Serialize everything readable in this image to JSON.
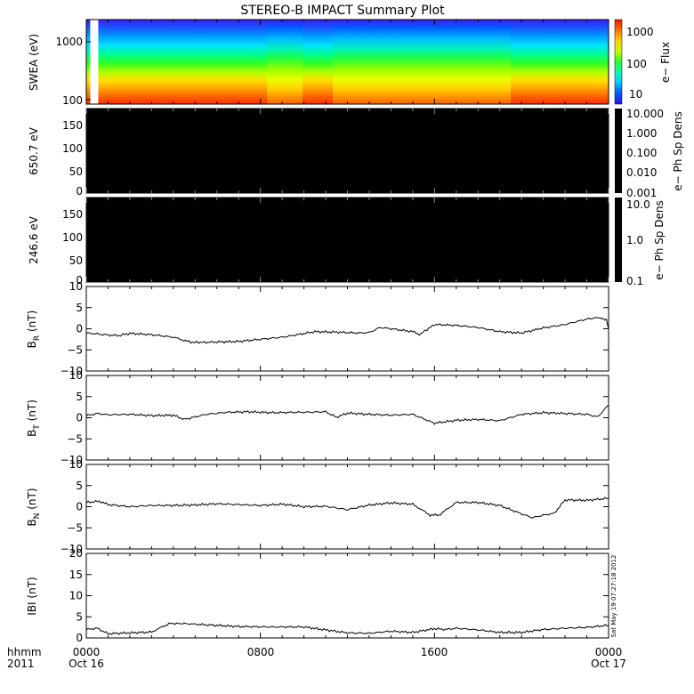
{
  "title": "STEREO-B IMPACT Summary Plot",
  "x_axis": {
    "corner_top": "hhmm",
    "corner_bottom": "2011",
    "tick_labels": [
      "0000",
      "0800",
      "1600",
      "0000"
    ],
    "date_labels": [
      "Oct 16",
      "",
      "",
      "Oct 17"
    ]
  },
  "timestamp": "Sat May 19 07:27:18 2012",
  "colors": {
    "trace": "#000000",
    "panel_fill_black": "#000000",
    "spectrogram_gap": "#ffffff"
  },
  "chart_data": [
    {
      "type": "heatmap",
      "panel": "swea",
      "ylabel": "SWEA (eV)",
      "yscale": "log",
      "ylim": [
        100,
        2000
      ],
      "y_ticks": [
        "1000",
        "100"
      ],
      "colorbar": {
        "label": "e− Flux",
        "scale": "log",
        "range": [
          5,
          3000
        ],
        "ticks": [
          "1000",
          "100",
          "10"
        ]
      },
      "data_gap_hours": [
        0.18,
        0.55
      ],
      "description_levels": "flux high (red/orange) near 100-250 eV, green/cyan near 500-800 eV, blue near 1500-2000 eV; dip near 0930-1000 and after 1200"
    },
    {
      "type": "heatmap",
      "panel": "pad650",
      "ylabel": "650.7  eV",
      "ylim": [
        0,
        180
      ],
      "y_ticks": [
        "150",
        "100",
        "50",
        "0"
      ],
      "colorbar": {
        "label": "e− Ph Sp Dens",
        "scale": "log",
        "range": [
          0.001,
          10
        ],
        "ticks": [
          "10.000",
          "1.000",
          "0.100",
          "0.010",
          "0.001"
        ]
      },
      "fill": "black"
    },
    {
      "type": "heatmap",
      "panel": "pad246",
      "ylabel": "246.6  eV",
      "ylim": [
        0,
        180
      ],
      "y_ticks": [
        "150",
        "100",
        "50",
        "0"
      ],
      "colorbar": {
        "label": "e− Ph Sp Dens",
        "scale": "log",
        "range": [
          0.1,
          10
        ],
        "ticks": [
          "10.0",
          "1.0",
          "0.1"
        ]
      },
      "fill": "black"
    },
    {
      "type": "line",
      "panel": "br",
      "ylabel_main": "B",
      "ylabel_sub": "R",
      "ylabel_unit": " (nT)",
      "ylim": [
        -10,
        10
      ],
      "y_ticks": [
        "10",
        "5",
        "0",
        "−5",
        "−10"
      ],
      "x_hours": [
        0.0,
        0.5,
        1.0,
        1.5,
        2.0,
        3.0,
        4.0,
        4.8,
        5.5,
        7.0,
        8.0,
        9.0,
        10.5,
        11.5,
        12.5,
        13.0,
        13.5,
        14.0,
        15.0,
        15.3,
        16.0,
        17.0,
        18.0,
        19.0,
        20.0,
        21.0,
        22.0,
        23.0,
        23.6,
        23.9,
        24.0
      ],
      "values": [
        -1.0,
        -1.2,
        -1.5,
        -1.6,
        -1.1,
        -1.4,
        -2.0,
        -3.2,
        -3.2,
        -3.0,
        -2.5,
        -2.0,
        -0.7,
        -0.8,
        -1.0,
        -0.9,
        0.3,
        0.0,
        -0.7,
        -1.4,
        1.0,
        0.8,
        0.3,
        -0.7,
        -1.0,
        0.2,
        1.0,
        2.3,
        2.7,
        2.0,
        0.0
      ]
    },
    {
      "type": "line",
      "panel": "bt",
      "ylabel_main": "B",
      "ylabel_sub": "T",
      "ylabel_unit": " (nT)",
      "ylim": [
        -10,
        10
      ],
      "y_ticks": [
        "10",
        "5",
        "0",
        "−5",
        "−10"
      ],
      "x_hours": [
        0.0,
        0.5,
        1.0,
        2.0,
        3.0,
        4.0,
        4.5,
        5.5,
        6.5,
        7.5,
        8.5,
        10.0,
        11.0,
        11.5,
        12.0,
        13.0,
        14.0,
        15.0,
        16.0,
        17.0,
        18.0,
        19.0,
        20.0,
        21.0,
        22.0,
        23.0,
        23.5,
        24.0
      ],
      "values": [
        0.5,
        1.0,
        0.7,
        0.8,
        0.5,
        0.6,
        -0.4,
        0.8,
        1.3,
        1.4,
        1.2,
        1.3,
        1.4,
        0.1,
        1.1,
        0.8,
        0.6,
        0.8,
        -1.3,
        -0.6,
        -0.4,
        -0.7,
        0.8,
        1.2,
        1.0,
        0.8,
        0.2,
        3.0
      ]
    },
    {
      "type": "line",
      "panel": "bn",
      "ylabel_main": "B",
      "ylabel_sub": "N",
      "ylabel_unit": " (nT)",
      "ylim": [
        -10,
        10
      ],
      "y_ticks": [
        "10",
        "5",
        "0",
        "−5",
        "−10"
      ],
      "x_hours": [
        0.0,
        0.6,
        1.0,
        2.0,
        3.0,
        4.0,
        5.0,
        6.0,
        7.0,
        8.0,
        9.0,
        10.0,
        11.0,
        12.0,
        13.0,
        14.0,
        15.0,
        15.8,
        16.2,
        17.0,
        18.0,
        19.0,
        20.0,
        20.5,
        21.0,
        21.5,
        22.0,
        23.0,
        24.0
      ],
      "values": [
        1.0,
        1.3,
        0.5,
        0.0,
        0.3,
        0.3,
        0.4,
        0.7,
        0.5,
        0.3,
        0.6,
        0.0,
        0.1,
        -0.7,
        0.4,
        0.9,
        0.6,
        -2.0,
        -2.0,
        1.0,
        1.0,
        0.3,
        -1.7,
        -2.6,
        -2.0,
        -1.6,
        1.6,
        1.5,
        2.0
      ]
    },
    {
      "type": "line",
      "panel": "bmag",
      "ylabel_main": "IBI (nT)",
      "ylim": [
        0,
        20
      ],
      "y_ticks": [
        "20",
        "15",
        "10",
        "5",
        "0"
      ],
      "x_hours": [
        0.0,
        0.5,
        1.0,
        2.0,
        3.0,
        3.8,
        4.5,
        5.5,
        7.0,
        8.5,
        10.0,
        11.0,
        12.0,
        13.0,
        14.0,
        15.0,
        16.0,
        16.5,
        17.0,
        18.0,
        19.0,
        20.0,
        21.0,
        22.0,
        23.0,
        24.0
      ],
      "values": [
        2.0,
        2.3,
        1.0,
        1.2,
        1.4,
        3.4,
        3.4,
        3.1,
        2.7,
        2.6,
        2.6,
        1.9,
        1.2,
        1.1,
        1.6,
        1.3,
        2.2,
        2.0,
        2.3,
        1.9,
        1.3,
        1.3,
        2.0,
        2.3,
        2.5,
        3.0
      ]
    }
  ]
}
